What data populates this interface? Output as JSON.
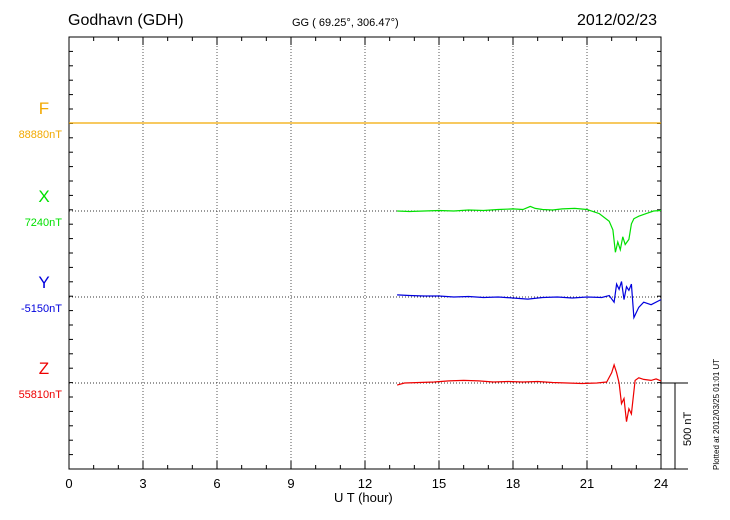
{
  "header": {
    "station": "Godhavn (GDH)",
    "coords": "GG ( 69.25°, 306.47°)",
    "date": "2012/02/23"
  },
  "footer": {
    "plotted": "Plotted at 2012/03/25 01:01 UT"
  },
  "chart_data": {
    "type": "line",
    "title": "Godhavn (GDH)",
    "xlabel": "U T (hour)",
    "ylabel": "",
    "xlim": [
      0,
      24
    ],
    "xticks": [
      "0",
      "3",
      "6",
      "9",
      "12",
      "15",
      "18",
      "21",
      "24"
    ],
    "grid": true,
    "scale_bar": {
      "label": "500 nT",
      "value_nT": 500
    },
    "series": [
      {
        "name": "F",
        "baseline_label": "88880nT",
        "baseline_nT": 88880,
        "color": "#f2a900",
        "x": [
          0,
          24
        ],
        "y": [
          0,
          0
        ]
      },
      {
        "name": "X",
        "baseline_label": "7240nT",
        "baseline_nT": 7240,
        "color": "#00e000",
        "x": [
          13.3,
          13.8,
          14.4,
          15.0,
          15.6,
          16.2,
          16.8,
          17.4,
          18.0,
          18.4,
          18.7,
          18.9,
          19.2,
          19.6,
          20.0,
          20.5,
          21.0,
          21.5,
          21.9,
          22.05,
          22.15,
          22.25,
          22.35,
          22.45,
          22.55,
          22.7,
          22.8,
          22.9,
          23.1,
          23.4,
          23.7,
          24.0
        ],
        "y": [
          0,
          -3,
          0,
          3,
          0,
          6,
          3,
          9,
          12,
          9,
          27,
          15,
          9,
          6,
          12,
          15,
          9,
          -15,
          -60,
          -110,
          -240,
          -180,
          -225,
          -150,
          -195,
          -165,
          -75,
          -45,
          -30,
          -15,
          0,
          3
        ]
      },
      {
        "name": "Y",
        "baseline_label": "-5150nT",
        "baseline_nT": -5150,
        "color": "#0000dd",
        "x": [
          13.3,
          13.8,
          14.4,
          15.0,
          15.6,
          16.2,
          16.8,
          17.4,
          18.0,
          18.6,
          19.2,
          19.8,
          20.4,
          21.0,
          21.6,
          21.9,
          22.1,
          22.2,
          22.3,
          22.4,
          22.5,
          22.6,
          22.7,
          22.8,
          22.9,
          23.1,
          23.3,
          23.6,
          24.0
        ],
        "y": [
          12,
          9,
          6,
          6,
          0,
          3,
          -3,
          0,
          -6,
          -12,
          -3,
          0,
          -6,
          0,
          -3,
          9,
          -30,
          75,
          45,
          90,
          -15,
          60,
          39,
          75,
          -120,
          -60,
          -30,
          -45,
          -15
        ]
      },
      {
        "name": "Z",
        "baseline_label": "55810nT",
        "baseline_nT": 55810,
        "color": "#ee0000",
        "x": [
          13.3,
          13.6,
          14.2,
          14.8,
          15.4,
          16.0,
          16.6,
          17.2,
          17.8,
          18.4,
          19.0,
          19.6,
          20.2,
          20.8,
          21.4,
          21.8,
          22.0,
          22.1,
          22.2,
          22.3,
          22.4,
          22.5,
          22.6,
          22.7,
          22.8,
          22.95,
          23.1,
          23.3,
          23.6,
          23.8,
          24.0
        ],
        "y": [
          -12,
          0,
          3,
          6,
          12,
          15,
          12,
          6,
          9,
          6,
          9,
          3,
          0,
          -3,
          0,
          6,
          60,
          105,
          60,
          0,
          -120,
          -90,
          -225,
          -150,
          -180,
          15,
          30,
          21,
          15,
          24,
          12
        ]
      }
    ]
  }
}
